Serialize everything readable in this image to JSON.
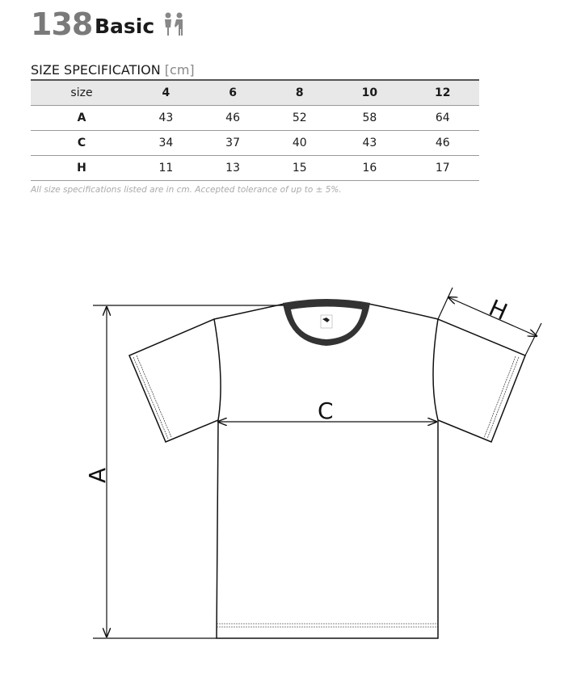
{
  "header": {
    "number": "138",
    "name": "Basic",
    "icon": "kids-icon"
  },
  "spec": {
    "title": "SIZE SPECIFICATION",
    "unit": "[cm]"
  },
  "table": {
    "headers": [
      "size",
      "4",
      "6",
      "8",
      "10",
      "12"
    ],
    "rows": [
      [
        "A",
        "43",
        "46",
        "52",
        "58",
        "64"
      ],
      [
        "C",
        "34",
        "37",
        "40",
        "43",
        "46"
      ],
      [
        "H",
        "11",
        "13",
        "15",
        "16",
        "17"
      ]
    ]
  },
  "note": "All size specifications listed are in cm. Accepted tolerance of up to ± 5%.",
  "diagram": {
    "a": "A",
    "c": "C",
    "h": "H"
  }
}
